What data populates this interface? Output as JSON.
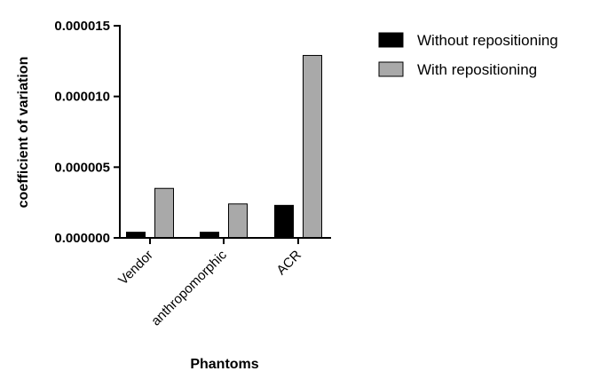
{
  "chart_data": {
    "type": "bar",
    "title": "",
    "xlabel": "Phantoms",
    "ylabel": "coefficient of variation",
    "categories": [
      "Vendor",
      "anthropomorphic",
      "ACR"
    ],
    "series": [
      {
        "name": "Without repositioning",
        "color": "#000000",
        "values": [
          4e-07,
          4e-07,
          2.3e-06
        ]
      },
      {
        "name": "With repositioning",
        "color": "#a9a9a9",
        "values": [
          3.5e-06,
          2.4e-06,
          1.29e-05
        ]
      }
    ],
    "ylim": [
      0,
      1.5e-05
    ],
    "yticks": [
      0,
      5e-06,
      1e-05,
      1.5e-05
    ],
    "ytick_labels": [
      "0.000000",
      "0.000005",
      "0.000010",
      "0.000015"
    ],
    "grid": false,
    "legend_position": "top-right"
  }
}
